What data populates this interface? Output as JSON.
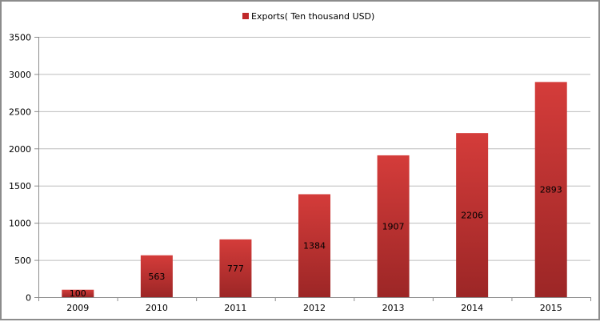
{
  "chart_data": {
    "type": "bar",
    "title": "",
    "xlabel": "",
    "ylabel": "",
    "categories": [
      "2009",
      "2010",
      "2011",
      "2012",
      "2013",
      "2014",
      "2015"
    ],
    "series": [
      {
        "name": "Exports( Ten thousand USD)",
        "values": [
          100,
          563,
          777,
          1384,
          1907,
          2206,
          2893
        ],
        "color": "#c83232"
      }
    ],
    "ylim": [
      0,
      3500
    ],
    "yticks": [
      0,
      500,
      1000,
      1500,
      2000,
      2500,
      3000,
      3500
    ],
    "grid": true,
    "legend": "top-center",
    "data_labels": true
  }
}
